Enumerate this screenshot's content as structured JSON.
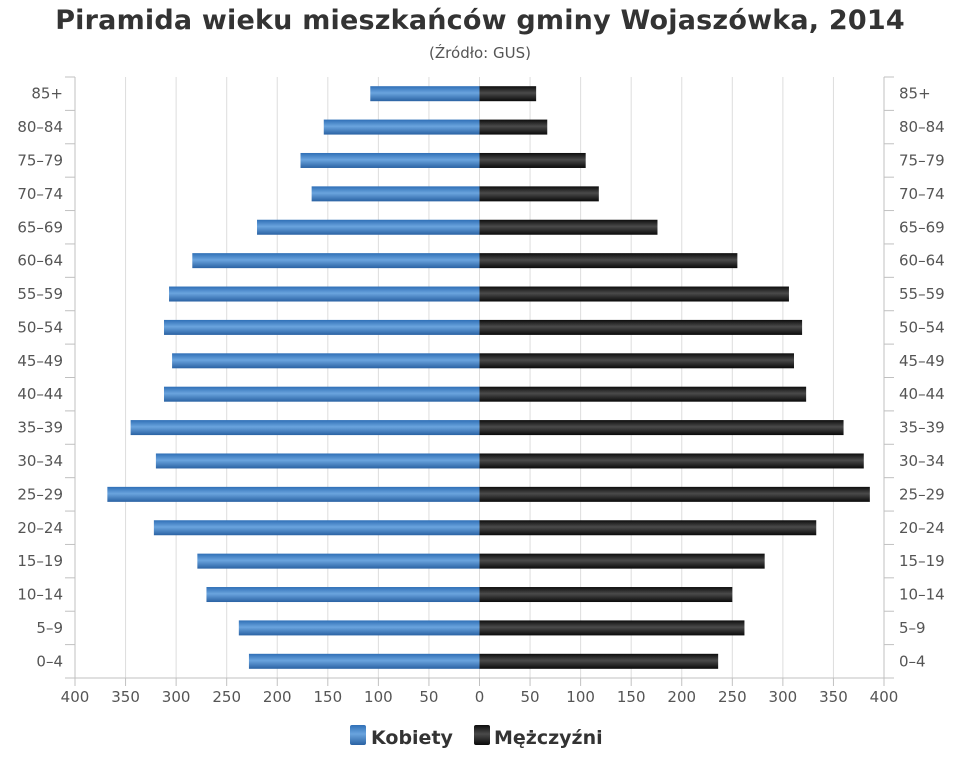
{
  "chart_data": {
    "type": "bar",
    "orientation": "horizontal-population-pyramid",
    "title": "Piramida wieku mieszkańców gminy Wojaszówka, 2014",
    "subtitle": "(Źródło: GUS)",
    "categories": [
      "85+",
      "80–84",
      "75–79",
      "70–74",
      "65–69",
      "60–64",
      "55–59",
      "50–54",
      "45–49",
      "40–44",
      "35–39",
      "30–34",
      "25–29",
      "20–24",
      "15–19",
      "10–14",
      "5–9",
      "0–4"
    ],
    "series": [
      {
        "name": "Kobiety",
        "side": "left",
        "color": "#3a7cc4",
        "values": [
          108,
          154,
          177,
          166,
          220,
          284,
          307,
          312,
          304,
          312,
          345,
          320,
          368,
          322,
          279,
          270,
          238,
          228
        ]
      },
      {
        "name": "Mężczyźni",
        "side": "right",
        "color": "#1a1a1a",
        "values": [
          56,
          67,
          105,
          118,
          176,
          255,
          306,
          319,
          311,
          323,
          360,
          380,
          386,
          333,
          282,
          250,
          262,
          236
        ]
      }
    ],
    "xlim": [
      -400,
      400
    ],
    "x_ticks": [
      -400,
      -350,
      -300,
      -250,
      -200,
      -150,
      -100,
      -50,
      0,
      50,
      100,
      150,
      200,
      250,
      300,
      350,
      400
    ],
    "x_tick_labels": [
      "400",
      "350",
      "300",
      "250",
      "200",
      "150",
      "100",
      "50",
      "0",
      "50",
      "100",
      "150",
      "200",
      "250",
      "300",
      "350",
      "400"
    ],
    "grid": "vertical",
    "legend_position": "bottom"
  }
}
